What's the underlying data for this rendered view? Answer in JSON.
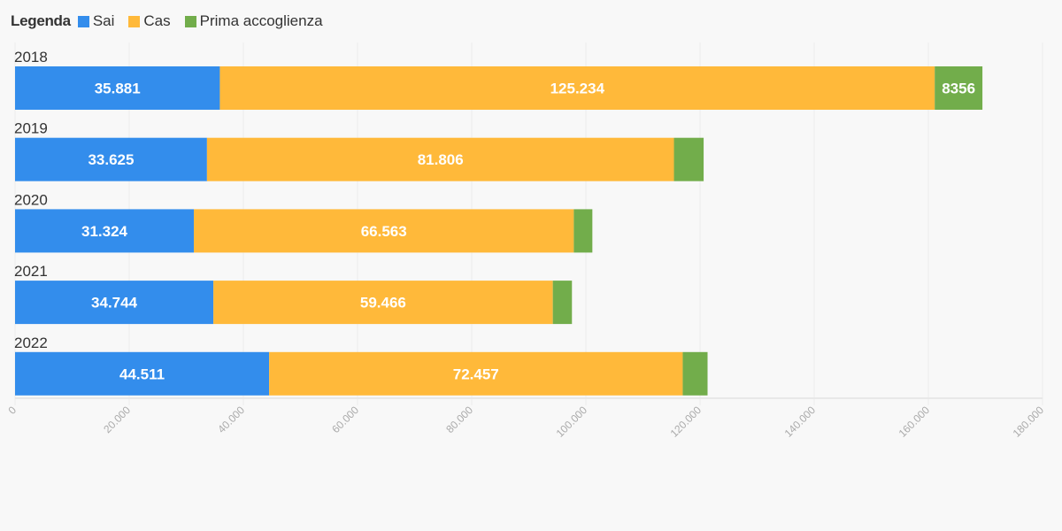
{
  "chart_data": {
    "type": "bar",
    "orientation": "horizontal",
    "stacked": true,
    "title": "",
    "xlabel": "",
    "ylabel": "",
    "legend_title": "Legenda",
    "legend_position": "top-left",
    "categories": [
      "2018",
      "2019",
      "2020",
      "2021",
      "2022"
    ],
    "series": [
      {
        "name": "Sai",
        "color": "#338dec",
        "values": [
          35881,
          33625,
          31324,
          34744,
          44511
        ],
        "labels": [
          "35.881",
          "33.625",
          "31.324",
          "34.744",
          "44.511"
        ]
      },
      {
        "name": "Cas",
        "color": "#ffb93a",
        "values": [
          125234,
          81806,
          66563,
          59466,
          72457
        ],
        "labels": [
          "125.234",
          "81.806",
          "66.563",
          "59.466",
          "72.457"
        ]
      },
      {
        "name": "Prima accoglienza",
        "color": "#72ad4b",
        "values": [
          8356,
          5200,
          3250,
          3350,
          4350
        ],
        "labels": [
          "8356",
          "",
          "",
          "",
          ""
        ]
      }
    ],
    "xlim": [
      0,
      180000
    ],
    "xticks": [
      0,
      20000,
      40000,
      60000,
      80000,
      100000,
      120000,
      140000,
      160000,
      180000
    ],
    "xtick_labels": [
      "0",
      "20.000",
      "40.000",
      "60.000",
      "80.000",
      "100.000",
      "120.000",
      "140.000",
      "160.000",
      "180.000"
    ],
    "grid": true
  }
}
